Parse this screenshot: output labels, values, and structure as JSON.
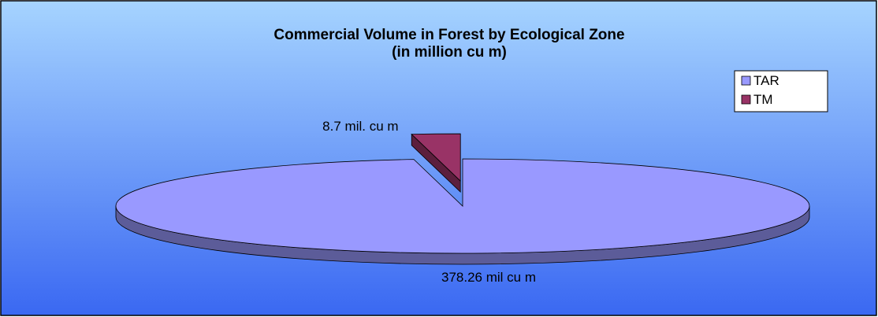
{
  "chart_data": {
    "type": "pie",
    "title": "Commercial Volume in Forest by Ecological Zone",
    "subtitle": "(in million cu m)",
    "categories": [
      "TAR",
      "TM"
    ],
    "values": [
      378.26,
      8.7
    ],
    "value_labels": [
      "378.26 mil cu m",
      "8.7 mil. cu m"
    ],
    "colors": [
      "#9999ff",
      "#993366"
    ],
    "legend": "upper right",
    "three_d": true
  }
}
